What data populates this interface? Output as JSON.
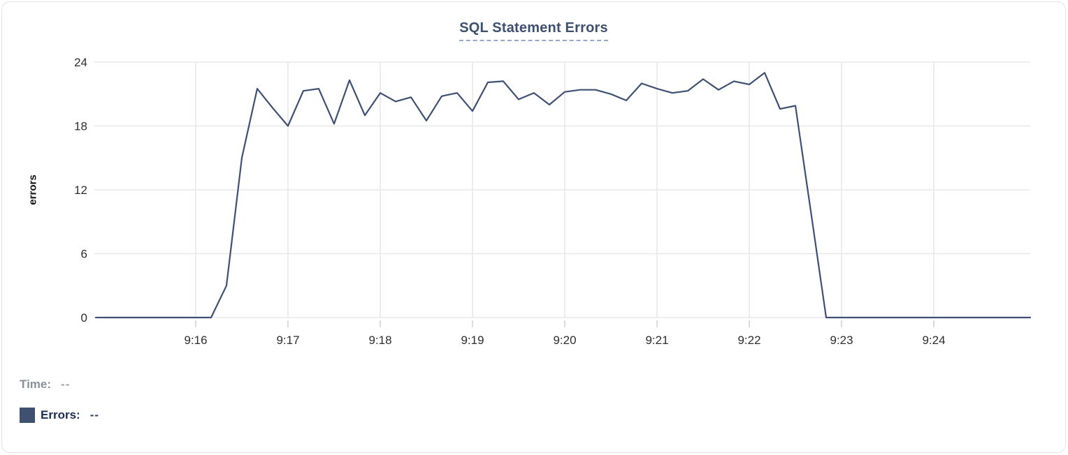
{
  "card": {
    "title": "SQL Statement Errors"
  },
  "colors": {
    "line": "#3e5073",
    "title": "#3d5070",
    "title_underline": "#97a8c8",
    "grid": "#e8e8e8",
    "tick_text": "#2e2e2e",
    "time_label": "#8a8f98",
    "errors_label": "#1d2e54",
    "legend_swatch": "#3f5070"
  },
  "readout": {
    "time_label": "Time:",
    "time_value": "--",
    "errors_label": "Errors:",
    "errors_value": "--"
  },
  "chart_data": {
    "type": "line",
    "title": "SQL Statement Errors",
    "xlabel": "",
    "ylabel": "errors",
    "ylim": [
      0,
      24
    ],
    "y_ticks": [
      0,
      6,
      12,
      18,
      24
    ],
    "x_ticks": [
      "9:16",
      "9:17",
      "9:18",
      "9:19",
      "9:20",
      "9:21",
      "9:22",
      "9:23",
      "9:24"
    ],
    "x_range": [
      "9:15:00",
      "9:25:00"
    ],
    "grid": true,
    "legend_position": "bottom-left",
    "series": [
      {
        "name": "Errors",
        "color": "#3e5073",
        "times": [
          "9:15:00",
          "9:15:10",
          "9:15:20",
          "9:15:30",
          "9:15:40",
          "9:15:50",
          "9:16:00",
          "9:16:10",
          "9:16:20",
          "9:16:30",
          "9:16:40",
          "9:16:50",
          "9:17:00",
          "9:17:10",
          "9:17:20",
          "9:17:30",
          "9:17:40",
          "9:17:50",
          "9:18:00",
          "9:18:10",
          "9:18:20",
          "9:18:30",
          "9:18:40",
          "9:18:50",
          "9:19:00",
          "9:19:10",
          "9:19:20",
          "9:19:30",
          "9:19:40",
          "9:19:50",
          "9:20:00",
          "9:20:10",
          "9:20:20",
          "9:20:30",
          "9:20:40",
          "9:20:50",
          "9:21:00",
          "9:21:10",
          "9:21:20",
          "9:21:30",
          "9:21:40",
          "9:21:50",
          "9:22:00",
          "9:22:10",
          "9:22:20",
          "9:22:30",
          "9:22:40",
          "9:22:50",
          "9:23:00",
          "9:23:10",
          "9:23:20",
          "9:23:30",
          "9:23:40",
          "9:23:50",
          "9:24:00",
          "9:24:10",
          "9:24:20",
          "9:24:30",
          "9:24:40",
          "9:24:50",
          "9:25:00"
        ],
        "values": [
          0,
          0,
          0,
          0,
          0,
          0,
          0,
          0,
          3,
          15,
          21.5,
          19.7,
          18,
          21.3,
          21.5,
          18.2,
          22.3,
          19,
          21.1,
          20.3,
          20.7,
          18.5,
          20.8,
          21.1,
          19.4,
          22.1,
          22.2,
          20.5,
          21.1,
          20,
          21.2,
          21.4,
          21.4,
          21,
          20.4,
          22,
          21.5,
          21.1,
          21.3,
          22.4,
          21.4,
          22.2,
          21.9,
          23,
          19.6,
          19.9,
          10,
          0,
          0,
          0,
          0,
          0,
          0,
          0,
          0,
          0,
          0,
          0,
          0,
          0,
          0
        ]
      }
    ]
  }
}
